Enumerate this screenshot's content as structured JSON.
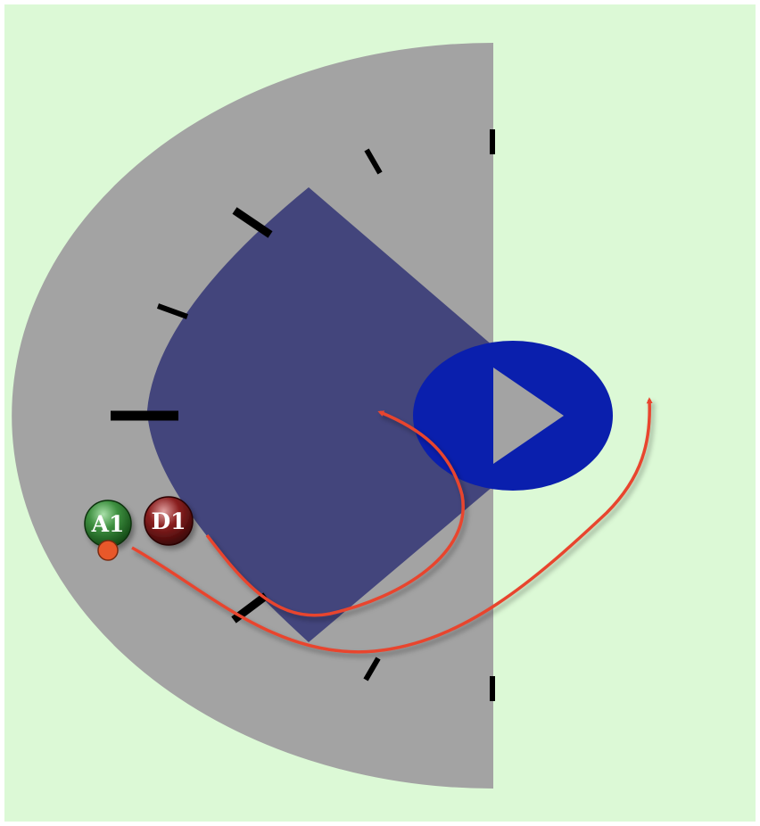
{
  "diagram": {
    "players": [
      {
        "label": "A1",
        "team": "attack"
      },
      {
        "label": "D1",
        "team": "defense"
      }
    ],
    "ball_carrier": "A1"
  },
  "colors": {
    "field": "#dcf9d6",
    "zone_outer": "#a3a3a3",
    "zone_inner": "#43457c",
    "goal_crease": "#0a1fad",
    "goal": "#a3a3a3",
    "markers": "#000000",
    "path_arrows": "#e8452f",
    "ball": "#e8582a",
    "attack_player": "#2e7d32",
    "defense_player": "#7b1515"
  }
}
